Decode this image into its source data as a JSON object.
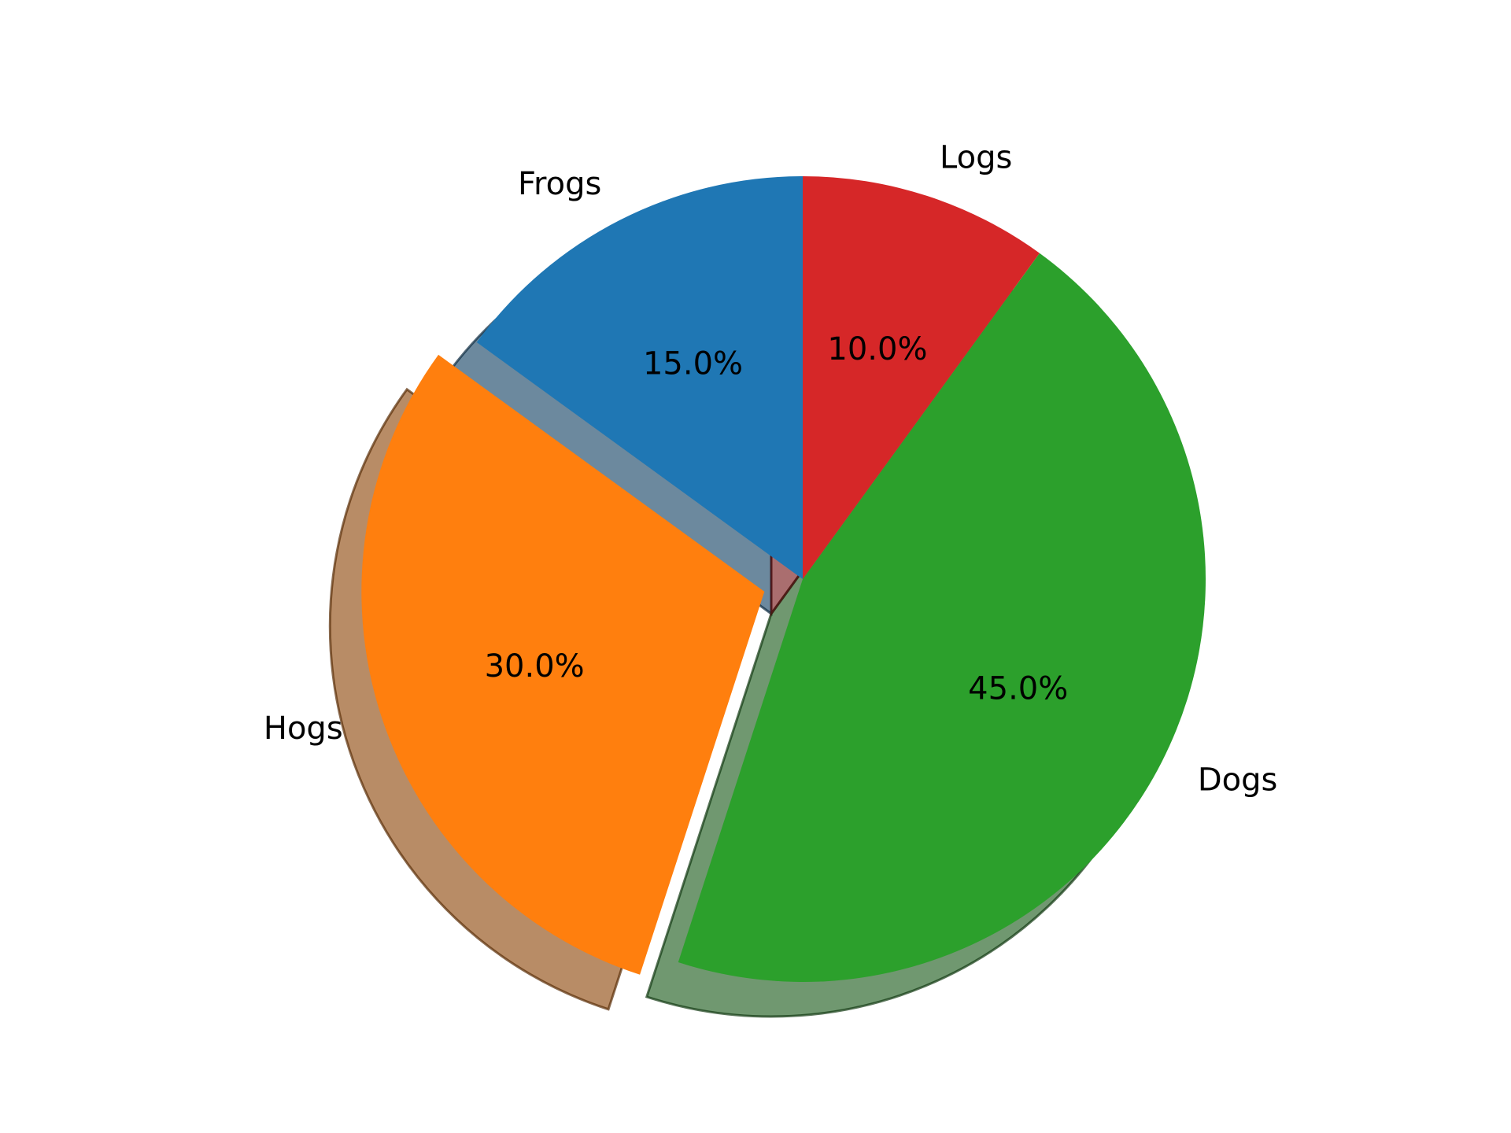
{
  "chart_data": {
    "type": "pie",
    "labels": [
      "Frogs",
      "Hogs",
      "Dogs",
      "Logs"
    ],
    "values": [
      15,
      30,
      45,
      10
    ],
    "percent_labels": [
      "15.0%",
      "30.0%",
      "45.0%",
      "10.0%"
    ],
    "colors": [
      "#1f77b4",
      "#ff7f0e",
      "#2ca02c",
      "#d62728"
    ],
    "explode": [
      0,
      0.1,
      0,
      0
    ],
    "start_angle_deg": 90,
    "direction": "counterclockwise",
    "shadow": true
  }
}
